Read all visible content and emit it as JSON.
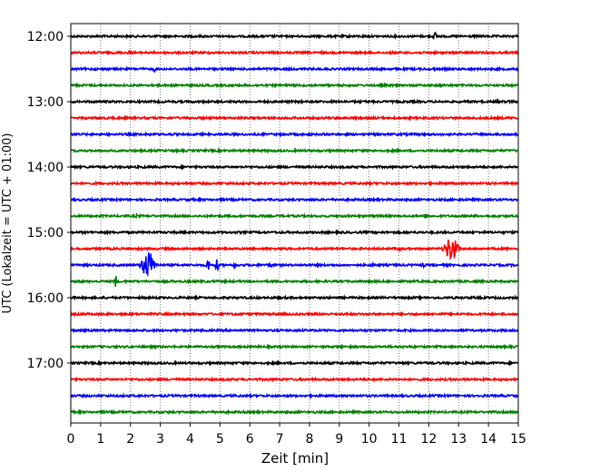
{
  "chart_data": {
    "type": "line",
    "title": "",
    "xlabel": "Zeit  [min]",
    "ylabel": "UTC (Lokalzeit = UTC + 01:00)",
    "xlim": [
      0,
      15
    ],
    "x_ticks": [
      "0",
      "1",
      "2",
      "3",
      "4",
      "5",
      "6",
      "7",
      "8",
      "9",
      "10",
      "11",
      "12",
      "13",
      "14",
      "15"
    ],
    "y_ticks": [
      "12:00",
      "13:00",
      "14:00",
      "15:00",
      "16:00",
      "17:00"
    ],
    "grid": "vertical dotted",
    "trace_interval_min": 15,
    "trace_colors": [
      "#000000",
      "#ff0000",
      "#0000ff",
      "#008000"
    ],
    "traces": [
      {
        "start": "12:00",
        "events": [
          {
            "t": 12.2,
            "amp": 5
          }
        ]
      },
      {
        "start": "12:15",
        "events": [
          {
            "t": 1.95,
            "amp": 3
          }
        ]
      },
      {
        "start": "12:30",
        "events": [
          {
            "t": 2.8,
            "amp": 3
          },
          {
            "t": 12.2,
            "amp": 3
          }
        ]
      },
      {
        "start": "12:45",
        "events": []
      },
      {
        "start": "13:00",
        "events": [
          {
            "t": 14.3,
            "amp": 2
          }
        ]
      },
      {
        "start": "13:15",
        "events": []
      },
      {
        "start": "13:30",
        "events": []
      },
      {
        "start": "13:45",
        "events": [
          {
            "t": 1.2,
            "amp": 2
          }
        ]
      },
      {
        "start": "14:00",
        "events": [
          {
            "t": 2.4,
            "amp": 2
          }
        ]
      },
      {
        "start": "14:15",
        "events": [
          {
            "t": 12.5,
            "amp": 2
          }
        ]
      },
      {
        "start": "14:30",
        "events": []
      },
      {
        "start": "14:45",
        "events": [
          {
            "t": 2.2,
            "amp": 2
          }
        ]
      },
      {
        "start": "15:00",
        "events": []
      },
      {
        "start": "15:15",
        "events": [
          {
            "t": 12.75,
            "amp": 14
          },
          {
            "t": 11.0,
            "amp": 3
          }
        ]
      },
      {
        "start": "15:30",
        "events": [
          {
            "t": 2.6,
            "amp": 16
          },
          {
            "t": 4.6,
            "amp": 8
          },
          {
            "t": 4.9,
            "amp": 7
          },
          {
            "t": 5.5,
            "amp": 4
          },
          {
            "t": 6.7,
            "amp": 4
          },
          {
            "t": 10.1,
            "amp": 3
          },
          {
            "t": 11.8,
            "amp": 3
          }
        ]
      },
      {
        "start": "15:45",
        "events": [
          {
            "t": 1.5,
            "amp": 7
          }
        ]
      },
      {
        "start": "16:00",
        "events": []
      },
      {
        "start": "16:15",
        "events": []
      },
      {
        "start": "16:30",
        "events": []
      },
      {
        "start": "16:45",
        "events": []
      },
      {
        "start": "17:00",
        "events": []
      },
      {
        "start": "17:15",
        "events": []
      },
      {
        "start": "17:30",
        "events": []
      },
      {
        "start": "17:45",
        "events": []
      }
    ]
  }
}
